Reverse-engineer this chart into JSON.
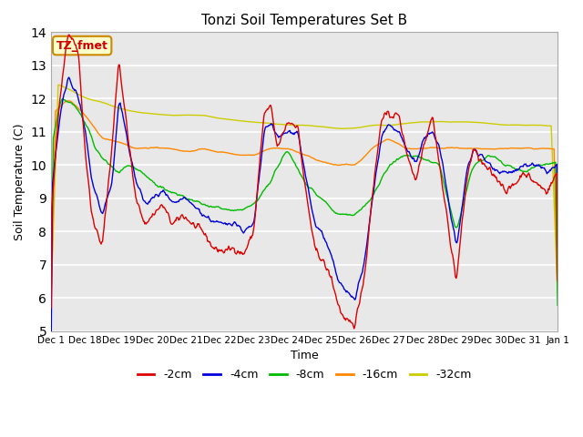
{
  "title": "Tonzi Soil Temperatures Set B",
  "xlabel": "Time",
  "ylabel": "Soil Temperature (C)",
  "ylim": [
    5.0,
    14.0
  ],
  "yticks": [
    5.0,
    6.0,
    7.0,
    8.0,
    9.0,
    10.0,
    11.0,
    12.0,
    13.0,
    14.0
  ],
  "colors": {
    "-2cm": "#dd0000",
    "-4cm": "#0000dd",
    "-8cm": "#00bb00",
    "-16cm": "#ff8800",
    "-32cm": "#cccc00"
  },
  "legend_labels": [
    "-2cm",
    "-4cm",
    "-8cm",
    "-16cm",
    "-32cm"
  ],
  "annotation_text": "TZ_fmet",
  "annotation_color": "#cc0000",
  "annotation_bg": "#ffffcc",
  "annotation_border": "#cc8800",
  "plot_bg": "#e8e8e8",
  "x_tick_labels": [
    "Dec 1",
    "Dec 18",
    "Dec 19",
    "Dec 20",
    "Dec 21",
    "Dec 22",
    "Dec 23",
    "Dec 24",
    "Dec 25",
    "Dec 26",
    "Dec 27",
    "Dec 28",
    "Dec 29",
    "Dec 30",
    "Dec 31",
    "Jan 1"
  ]
}
